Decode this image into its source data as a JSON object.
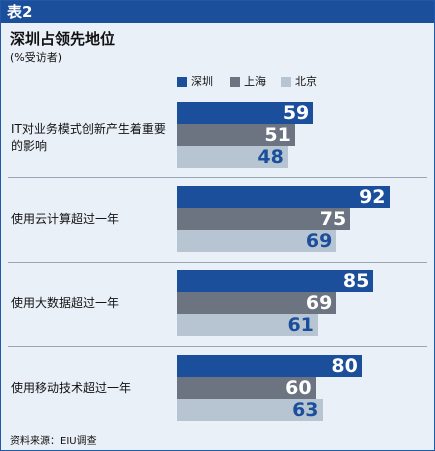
{
  "header": {
    "label": "表2"
  },
  "chart_data": {
    "type": "bar",
    "orientation": "horizontal",
    "title": "深圳占领先地位",
    "subtitle": "(%受访者)",
    "categories": [
      "IT对业务模式创新产生着重要的影响",
      "使用云计算超过一年",
      "使用大数据超过一年",
      "使用移动技术超过一年"
    ],
    "series": [
      {
        "name": "深圳",
        "color": "#1b4e9b",
        "values": [
          59,
          92,
          85,
          80
        ]
      },
      {
        "name": "上海",
        "color": "#6b7480",
        "values": [
          51,
          75,
          69,
          60
        ]
      },
      {
        "name": "北京",
        "color": "#b7c4d1",
        "values": [
          48,
          69,
          61,
          63
        ]
      }
    ],
    "xlim": [
      0,
      100
    ],
    "legend_position": "top",
    "grid": false,
    "source": "资料来源：EIU调查"
  }
}
